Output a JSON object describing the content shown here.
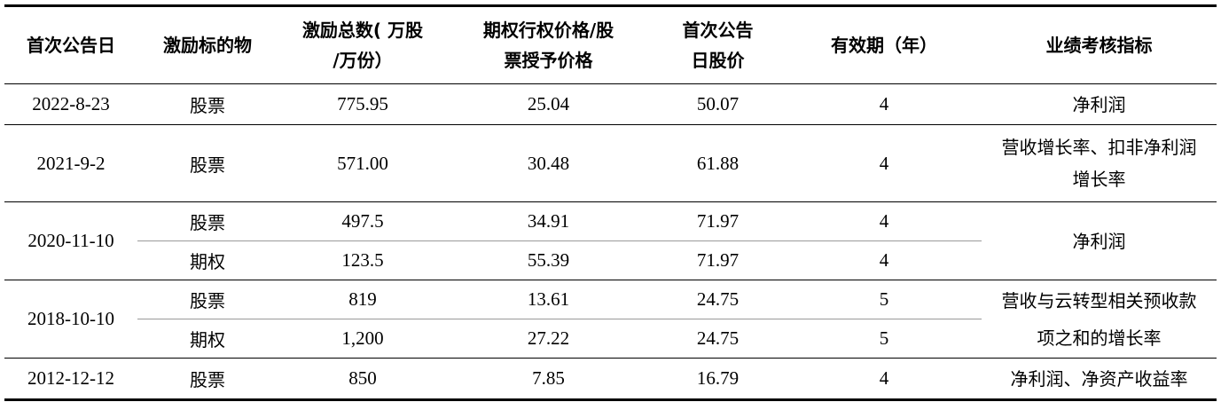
{
  "headers": {
    "date": "首次公告日",
    "subject": "激励标的物",
    "total_line1": "激励总数( 万股",
    "total_line2": "/万份）",
    "price_line1": "期权行权价格/股",
    "price_line2": "票授予价格",
    "stock_line1": "首次公告",
    "stock_line2": "日股价",
    "validity": "有效期（年）",
    "metric": "业绩考核指标"
  },
  "rows": [
    {
      "date": "2022-8-23",
      "items": [
        {
          "subject": "股票",
          "total": "775.95",
          "price": "25.04",
          "stock_price": "50.07",
          "validity": "4"
        }
      ],
      "metric_line1": "净利润",
      "metric_line2": ""
    },
    {
      "date": "2021-9-2",
      "items": [
        {
          "subject": "股票",
          "total": "571.00",
          "price": "30.48",
          "stock_price": "61.88",
          "validity": "4"
        }
      ],
      "metric_line1": "营收增长率、扣非净利润",
      "metric_line2": "增长率"
    },
    {
      "date": "2020-11-10",
      "items": [
        {
          "subject": "股票",
          "total": "497.5",
          "price": "34.91",
          "stock_price": "71.97",
          "validity": "4"
        },
        {
          "subject": "期权",
          "total": "123.5",
          "price": "55.39",
          "stock_price": "71.97",
          "validity": "4"
        }
      ],
      "metric_line1": "净利润",
      "metric_line2": ""
    },
    {
      "date": "2018-10-10",
      "items": [
        {
          "subject": "股票",
          "total": "819",
          "price": "13.61",
          "stock_price": "24.75",
          "validity": "5"
        },
        {
          "subject": "期权",
          "total": "1,200",
          "price": "27.22",
          "stock_price": "24.75",
          "validity": "5"
        }
      ],
      "metric_line1": "营收与云转型相关预收款",
      "metric_line2": "项之和的增长率"
    },
    {
      "date": "2012-12-12",
      "items": [
        {
          "subject": "股票",
          "total": "850",
          "price": "7.85",
          "stock_price": "16.79",
          "validity": "4"
        }
      ],
      "metric_line1": "净利润、净资产收益率",
      "metric_line2": ""
    }
  ]
}
